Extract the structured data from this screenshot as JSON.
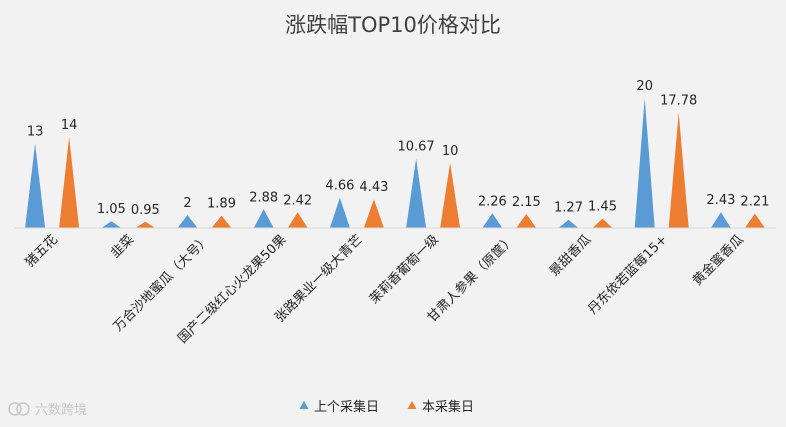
{
  "chart_data": {
    "type": "bar",
    "title": "涨跌幅TOP10价格对比",
    "categories": [
      "猪五花",
      "韭菜",
      "万合沙地蜜瓜（大号）",
      "国产二级红心火龙果50果",
      "张路果业一级大青芒",
      "茉莉香葡萄一级",
      "甘肃人参果（原筐）",
      "景甜香瓜",
      "丹东依若蓝莓15+",
      "黄金蜜香瓜"
    ],
    "series": [
      {
        "name": "上个采集日",
        "color": "#5b9bd5",
        "values": [
          13,
          1.05,
          2,
          2.88,
          4.66,
          10.67,
          2.26,
          1.27,
          20,
          2.43
        ]
      },
      {
        "name": "本采集日",
        "color": "#ed7d31",
        "values": [
          14,
          0.95,
          1.89,
          2.42,
          4.43,
          10,
          2.15,
          1.45,
          17.78,
          2.21
        ]
      }
    ],
    "data_labels": [
      [
        "13",
        "1.05",
        "2",
        "2.88",
        "4.66",
        "10.67",
        "2.26",
        "1.27",
        "20",
        "2.43"
      ],
      [
        "14",
        "0.95",
        "1.89",
        "2.42",
        "4.43",
        "10",
        "2.15",
        "1.45",
        "17.78",
        "2.21"
      ]
    ],
    "ylim": [
      0,
      20
    ],
    "legend_position": "bottom",
    "grid": false
  },
  "watermark": {
    "text": "六数跨境",
    "icon": "watermark-logo-icon"
  }
}
